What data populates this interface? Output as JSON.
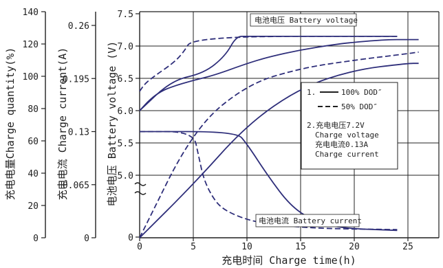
{
  "chart_data": {
    "type": "line",
    "xlabel": "充电时间 Charge time(h)",
    "xlim": [
      0,
      30
    ],
    "x_ticks": [
      "0",
      "5",
      "10",
      "15",
      "20",
      "25"
    ],
    "axes": {
      "quantity": {
        "label": "充电电量Charge quantity(%)",
        "ticks": [
          "0",
          "20",
          "40",
          "60",
          "80",
          "100",
          "120",
          "140"
        ],
        "ylim": [
          0,
          140
        ]
      },
      "current": {
        "label": "充电电流 Charge current(A)",
        "ticks": [
          "0",
          "0.065",
          "0.13",
          "0.195",
          "0.26"
        ],
        "ylim": [
          0,
          0.26
        ]
      },
      "voltage": {
        "label": "电池电压 Battery voltage (V)",
        "ticks": [
          "0",
          "5.0",
          "5.5",
          "6.0",
          "6.5",
          "7.0",
          "7.5"
        ],
        "ylim": [
          5.0,
          7.5
        ]
      }
    },
    "grid": true,
    "curve_labels": {
      "voltage": "电池电压 Battery voltage",
      "current": "电池电流 Battery current"
    },
    "legend": {
      "items": [
        {
          "number": "1.",
          "style": "solid",
          "label": "100% DOD″"
        },
        {
          "style": "dashed",
          "label": "50%  DOD″"
        }
      ],
      "note_lines": [
        "2.充电电压7.2V",
        "Charge voltage",
        "充电电流0.13A",
        "Charge current"
      ]
    },
    "series": [
      {
        "group": "voltage",
        "dod": "100%",
        "style": "solid",
        "x": [
          0,
          1,
          2,
          3,
          5,
          7,
          10,
          12,
          15,
          18,
          20,
          23,
          25,
          26
        ],
        "y": [
          6.0,
          6.18,
          6.3,
          6.37,
          6.47,
          6.55,
          6.73,
          6.83,
          6.94,
          7.02,
          7.06,
          7.1,
          7.1,
          7.1
        ]
      },
      {
        "group": "voltage",
        "dod": "50%",
        "style": "dashed",
        "x": [
          0,
          0.5,
          1.5,
          3,
          4,
          5,
          24
        ],
        "y": [
          6.3,
          6.42,
          6.55,
          6.72,
          6.88,
          7.15,
          7.15
        ]
      },
      {
        "group": "voltage",
        "dod": "100%",
        "style": "solid",
        "x": [
          0,
          3,
          6,
          8,
          9,
          10,
          24
        ],
        "y": [
          6.0,
          6.47,
          6.58,
          6.85,
          7.15,
          7.15,
          7.15
        ]
      },
      {
        "group": "current",
        "dod": "100%",
        "style": "solid",
        "x": [
          0,
          9,
          10,
          12,
          14,
          16,
          18,
          20,
          22,
          24
        ],
        "y": [
          0.13,
          0.13,
          0.115,
          0.075,
          0.04,
          0.022,
          0.014,
          0.011,
          0.01,
          0.009
        ]
      },
      {
        "group": "current",
        "dod": "50%",
        "style": "dashed",
        "x": [
          0,
          5,
          5.5,
          6,
          7,
          8,
          10,
          12,
          15,
          18,
          24
        ],
        "y": [
          0.13,
          0.13,
          0.1,
          0.07,
          0.045,
          0.033,
          0.022,
          0.017,
          0.013,
          0.011,
          0.01
        ]
      },
      {
        "group": "quantity",
        "dod": "50%",
        "style": "dashed",
        "x": [
          0,
          5,
          10,
          15,
          20,
          25,
          26
        ],
        "y": [
          0,
          67,
          95,
          105,
          110,
          114,
          115
        ]
      },
      {
        "group": "quantity",
        "dod": "100%",
        "style": "solid",
        "x": [
          0,
          5,
          10,
          15,
          20,
          25,
          26
        ],
        "y": [
          0,
          33,
          70,
          93,
          104,
          108,
          108
        ]
      }
    ]
  }
}
